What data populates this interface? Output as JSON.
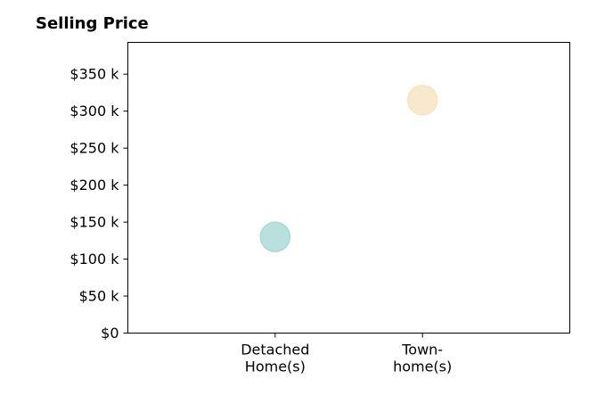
{
  "chart_data": {
    "type": "scatter",
    "title": "Selling Price",
    "categories": [
      "Detached\nHome(s)",
      "Town-\nhome(s)"
    ],
    "series": [
      {
        "values": [
          130000,
          315000
        ],
        "colors": [
          "#a8d8d4",
          "#f6e4c0"
        ]
      }
    ],
    "y_ticks": [
      {
        "value": 0,
        "label": "$0"
      },
      {
        "value": 50000,
        "label": "$50 k"
      },
      {
        "value": 100000,
        "label": "$100 k"
      },
      {
        "value": 150000,
        "label": "$150 k"
      },
      {
        "value": 200000,
        "label": "$200 k"
      },
      {
        "value": 250000,
        "label": "$250 k"
      },
      {
        "value": 300000,
        "label": "$300 k"
      },
      {
        "value": 350000,
        "label": "$350 k"
      }
    ],
    "ylim": [
      0,
      393000
    ],
    "grid": false,
    "legend": "none"
  }
}
